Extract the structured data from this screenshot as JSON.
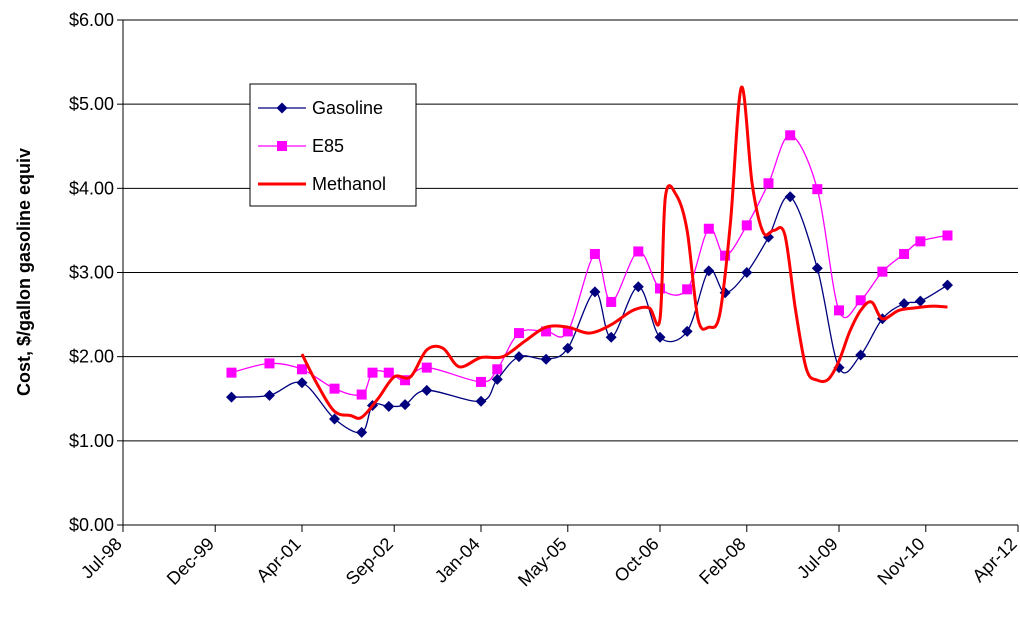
{
  "chart_data": {
    "type": "line",
    "title": "",
    "xlabel": "",
    "ylabel": "Cost, $/gallon gasoline equiv",
    "ylim": [
      0,
      6
    ],
    "xlim": [
      "1998-07",
      "2012-04"
    ],
    "y_ticks": [
      "$0.00",
      "$1.00",
      "$2.00",
      "$3.00",
      "$4.00",
      "$5.00",
      "$6.00"
    ],
    "x_ticks": [
      "Jul-98",
      "Dec-99",
      "Apr-01",
      "Sep-02",
      "Jan-04",
      "May-05",
      "Oct-06",
      "Feb-08",
      "Jul-09",
      "Nov-10",
      "Apr-12"
    ],
    "x_tick_dates": [
      "1998-07",
      "1999-12",
      "2001-04",
      "2002-09",
      "2004-01",
      "2005-05",
      "2006-10",
      "2008-02",
      "2009-07",
      "2010-11",
      "2012-04"
    ],
    "grid": "horizontal",
    "legend_position": "top-left",
    "series": [
      {
        "name": "Gasoline",
        "color": "#00007f",
        "marker": "diamond",
        "line": "thin",
        "x": [
          "2000-03",
          "2000-10",
          "2001-04",
          "2001-10",
          "2002-03",
          "2002-05",
          "2002-08",
          "2002-11",
          "2003-03",
          "2004-01",
          "2004-04",
          "2004-08",
          "2005-01",
          "2005-05",
          "2005-10",
          "2006-01",
          "2006-06",
          "2006-10",
          "2007-03",
          "2007-07",
          "2007-10",
          "2008-02",
          "2008-06",
          "2008-10",
          "2009-03",
          "2009-07",
          "2009-11",
          "2010-03",
          "2010-07",
          "2010-10",
          "2011-03"
        ],
        "y": [
          1.52,
          1.54,
          1.69,
          1.26,
          1.1,
          1.42,
          1.41,
          1.43,
          1.6,
          1.47,
          1.73,
          2.0,
          1.97,
          2.1,
          2.77,
          2.23,
          2.83,
          2.23,
          2.3,
          3.02,
          2.76,
          3.0,
          3.42,
          3.9,
          3.05,
          1.87,
          2.02,
          2.45,
          2.63,
          2.66,
          2.85
        ]
      },
      {
        "name": "E85",
        "color": "#ff00ff",
        "marker": "square",
        "line": "thin",
        "x": [
          "2000-03",
          "2000-10",
          "2001-04",
          "2001-10",
          "2002-03",
          "2002-05",
          "2002-08",
          "2002-11",
          "2003-03",
          "2004-01",
          "2004-04",
          "2004-08",
          "2005-01",
          "2005-05",
          "2005-10",
          "2006-01",
          "2006-06",
          "2006-10",
          "2007-03",
          "2007-07",
          "2007-10",
          "2008-02",
          "2008-06",
          "2008-10",
          "2009-03",
          "2009-07",
          "2009-11",
          "2010-03",
          "2010-07",
          "2010-10",
          "2011-03"
        ],
        "y": [
          1.81,
          1.92,
          1.85,
          1.62,
          1.55,
          1.81,
          1.81,
          1.72,
          1.87,
          1.7,
          1.85,
          2.28,
          2.3,
          2.3,
          3.22,
          2.65,
          3.25,
          2.81,
          2.8,
          3.52,
          3.2,
          3.56,
          4.06,
          4.63,
          3.99,
          2.55,
          2.67,
          3.01,
          3.22,
          3.37,
          3.44
        ]
      },
      {
        "name": "Methanol",
        "color": "#ff0000",
        "marker": "none",
        "line": "thick",
        "x": [
          "2001-04",
          "2001-07",
          "2001-10",
          "2002-01",
          "2002-03",
          "2002-06",
          "2002-09",
          "2002-12",
          "2003-03",
          "2003-06",
          "2003-09",
          "2004-01",
          "2004-05",
          "2004-09",
          "2005-01",
          "2005-05",
          "2005-09",
          "2006-01",
          "2006-05",
          "2006-08",
          "2006-10",
          "2006-11",
          "2007-01",
          "2007-03",
          "2007-05",
          "2007-07",
          "2007-09",
          "2007-11",
          "2008-01",
          "2008-03",
          "2008-05",
          "2008-07",
          "2008-09",
          "2008-11",
          "2009-01",
          "2009-03",
          "2009-05",
          "2009-07",
          "2009-09",
          "2009-11",
          "2010-01",
          "2010-03",
          "2010-06",
          "2010-09",
          "2010-12",
          "2011-03"
        ],
        "y": [
          2.03,
          1.65,
          1.35,
          1.3,
          1.28,
          1.5,
          1.76,
          1.76,
          2.08,
          2.1,
          1.88,
          1.99,
          2.0,
          2.18,
          2.35,
          2.35,
          2.28,
          2.38,
          2.55,
          2.58,
          2.45,
          3.9,
          3.92,
          3.5,
          2.45,
          2.35,
          2.5,
          3.6,
          5.2,
          4.05,
          3.48,
          3.5,
          3.45,
          2.55,
          1.85,
          1.72,
          1.73,
          1.95,
          2.3,
          2.55,
          2.65,
          2.45,
          2.55,
          2.58,
          2.6,
          2.59
        ]
      }
    ]
  }
}
